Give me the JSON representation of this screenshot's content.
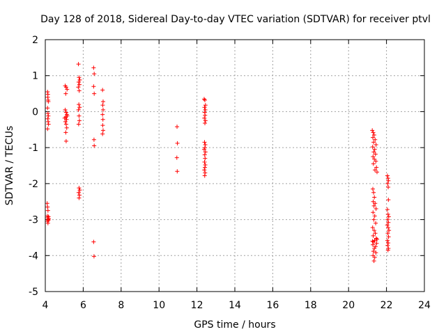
{
  "chart_data": {
    "type": "scatter",
    "title": "Day 128 of 2018, Sidereal Day-to-day VTEC variation (SDTVAR) for receiver ptvl",
    "xlabel": "GPS time / hours",
    "ylabel": "SDTVAR / TECUs",
    "xlim": [
      4,
      24
    ],
    "ylim": [
      -5,
      2
    ],
    "xticks": [
      4,
      6,
      8,
      10,
      12,
      14,
      16,
      18,
      20,
      22,
      24
    ],
    "yticks": [
      -5,
      -4,
      -3,
      -2,
      -1,
      0,
      1,
      2
    ],
    "grid": true,
    "marker": "+",
    "color": "#ff0000",
    "series": [
      {
        "name": "SDTVAR",
        "points": [
          [
            4.12,
            0.55
          ],
          [
            4.14,
            0.48
          ],
          [
            4.13,
            0.4
          ],
          [
            4.15,
            0.32
          ],
          [
            4.16,
            0.28
          ],
          [
            4.12,
            0.1
          ],
          [
            4.14,
            -0.05
          ],
          [
            4.16,
            -0.12
          ],
          [
            4.13,
            -0.2
          ],
          [
            4.15,
            -0.28
          ],
          [
            4.17,
            -0.35
          ],
          [
            4.12,
            -0.48
          ],
          [
            4.1,
            -2.55
          ],
          [
            4.12,
            -2.65
          ],
          [
            4.14,
            -2.75
          ],
          [
            4.11,
            -2.9
          ],
          [
            4.13,
            -2.95
          ],
          [
            4.15,
            -3.0
          ],
          [
            4.17,
            -2.92
          ],
          [
            4.12,
            -3.05
          ],
          [
            4.14,
            -3.1
          ],
          [
            4.16,
            -3.02
          ],
          [
            4.18,
            -2.98
          ],
          [
            5.05,
            0.72
          ],
          [
            5.1,
            0.68
          ],
          [
            5.15,
            0.62
          ],
          [
            5.08,
            0.5
          ],
          [
            5.05,
            0.05
          ],
          [
            5.1,
            -0.02
          ],
          [
            5.14,
            -0.08
          ],
          [
            5.08,
            -0.15
          ],
          [
            5.12,
            -0.22
          ],
          [
            5.06,
            -0.28
          ],
          [
            5.1,
            -0.35
          ],
          [
            5.13,
            -0.45
          ],
          [
            5.08,
            -0.58
          ],
          [
            5.1,
            -0.82
          ],
          [
            5.16,
            -0.12
          ],
          [
            5.02,
            -0.18
          ],
          [
            5.75,
            1.32
          ],
          [
            5.78,
            0.95
          ],
          [
            5.82,
            0.88
          ],
          [
            5.76,
            0.82
          ],
          [
            5.8,
            0.75
          ],
          [
            5.74,
            0.68
          ],
          [
            5.79,
            0.58
          ],
          [
            5.77,
            0.2
          ],
          [
            5.81,
            0.12
          ],
          [
            5.75,
            0.05
          ],
          [
            5.78,
            -0.12
          ],
          [
            5.8,
            -0.25
          ],
          [
            5.76,
            -0.35
          ],
          [
            5.78,
            -2.12
          ],
          [
            5.82,
            -2.18
          ],
          [
            5.76,
            -2.25
          ],
          [
            5.8,
            -2.32
          ],
          [
            5.78,
            -2.4
          ],
          [
            6.55,
            1.22
          ],
          [
            6.58,
            1.05
          ],
          [
            6.55,
            0.7
          ],
          [
            6.58,
            0.5
          ],
          [
            6.57,
            -0.78
          ],
          [
            6.58,
            -0.95
          ],
          [
            6.55,
            -3.62
          ],
          [
            6.57,
            -4.02
          ],
          [
            7.02,
            0.6
          ],
          [
            7.05,
            0.28
          ],
          [
            7.03,
            0.18
          ],
          [
            7.05,
            0.05
          ],
          [
            7.02,
            -0.08
          ],
          [
            7.04,
            -0.22
          ],
          [
            7.03,
            -0.38
          ],
          [
            7.05,
            -0.52
          ],
          [
            7.02,
            -0.62
          ],
          [
            10.95,
            -0.42
          ],
          [
            10.97,
            -0.88
          ],
          [
            10.94,
            -1.28
          ],
          [
            10.96,
            -1.66
          ],
          [
            12.38,
            0.35
          ],
          [
            12.42,
            0.32
          ],
          [
            12.45,
            0.18
          ],
          [
            12.4,
            0.12
          ],
          [
            12.44,
            0.05
          ],
          [
            12.41,
            -0.02
          ],
          [
            12.43,
            -0.1
          ],
          [
            12.39,
            -0.18
          ],
          [
            12.45,
            -0.25
          ],
          [
            12.42,
            -0.32
          ],
          [
            12.4,
            -0.85
          ],
          [
            12.44,
            -0.92
          ],
          [
            12.42,
            -1.0
          ],
          [
            12.38,
            -1.05
          ],
          [
            12.45,
            -1.12
          ],
          [
            12.41,
            -1.2
          ],
          [
            12.43,
            -1.3
          ],
          [
            12.4,
            -1.4
          ],
          [
            12.44,
            -1.48
          ],
          [
            12.42,
            -1.55
          ],
          [
            12.39,
            -1.62
          ],
          [
            12.43,
            -1.7
          ],
          [
            12.41,
            -1.78
          ],
          [
            21.25,
            -0.52
          ],
          [
            21.3,
            -0.58
          ],
          [
            21.35,
            -0.65
          ],
          [
            21.28,
            -0.72
          ],
          [
            21.4,
            -0.78
          ],
          [
            21.32,
            -0.85
          ],
          [
            21.45,
            -0.92
          ],
          [
            21.27,
            -0.98
          ],
          [
            21.38,
            -1.05
          ],
          [
            21.33,
            -1.12
          ],
          [
            21.42,
            -1.18
          ],
          [
            21.29,
            -1.25
          ],
          [
            21.36,
            -1.32
          ],
          [
            21.44,
            -1.38
          ],
          [
            21.31,
            -1.45
          ],
          [
            21.47,
            -1.55
          ],
          [
            21.39,
            -1.62
          ],
          [
            21.5,
            -1.68
          ],
          [
            21.28,
            -2.15
          ],
          [
            21.32,
            -2.25
          ],
          [
            21.36,
            -2.38
          ],
          [
            21.3,
            -2.5
          ],
          [
            21.4,
            -2.55
          ],
          [
            21.34,
            -2.62
          ],
          [
            21.45,
            -2.7
          ],
          [
            21.29,
            -2.8
          ],
          [
            21.38,
            -2.9
          ],
          [
            21.33,
            -3.0
          ],
          [
            21.43,
            -3.1
          ],
          [
            21.27,
            -3.22
          ],
          [
            21.35,
            -3.3
          ],
          [
            21.41,
            -3.38
          ],
          [
            21.3,
            -3.45
          ],
          [
            21.46,
            -3.52
          ],
          [
            21.37,
            -3.58
          ],
          [
            21.32,
            -3.62
          ],
          [
            21.48,
            -3.66
          ],
          [
            21.28,
            -3.7
          ],
          [
            21.42,
            -3.75
          ],
          [
            21.36,
            -3.8
          ],
          [
            21.31,
            -3.88
          ],
          [
            21.44,
            -3.92
          ],
          [
            21.29,
            -4.0
          ],
          [
            21.38,
            -4.05
          ],
          [
            21.34,
            -4.15
          ],
          [
            21.5,
            -3.55
          ],
          [
            21.26,
            -3.6
          ],
          [
            22.05,
            -1.78
          ],
          [
            22.08,
            -1.85
          ],
          [
            22.1,
            -1.92
          ],
          [
            22.06,
            -2.0
          ],
          [
            22.09,
            -2.1
          ],
          [
            22.1,
            -2.45
          ],
          [
            22.05,
            -2.72
          ],
          [
            22.08,
            -2.85
          ],
          [
            22.12,
            -2.92
          ],
          [
            22.06,
            -3.0
          ],
          [
            22.1,
            -3.08
          ],
          [
            22.04,
            -3.15
          ],
          [
            22.09,
            -3.22
          ],
          [
            22.13,
            -3.3
          ],
          [
            22.07,
            -3.38
          ],
          [
            22.11,
            -3.48
          ],
          [
            22.05,
            -3.58
          ],
          [
            22.09,
            -3.65
          ],
          [
            22.06,
            -3.72
          ],
          [
            22.1,
            -3.8
          ],
          [
            22.08,
            -3.85
          ]
        ]
      }
    ]
  }
}
